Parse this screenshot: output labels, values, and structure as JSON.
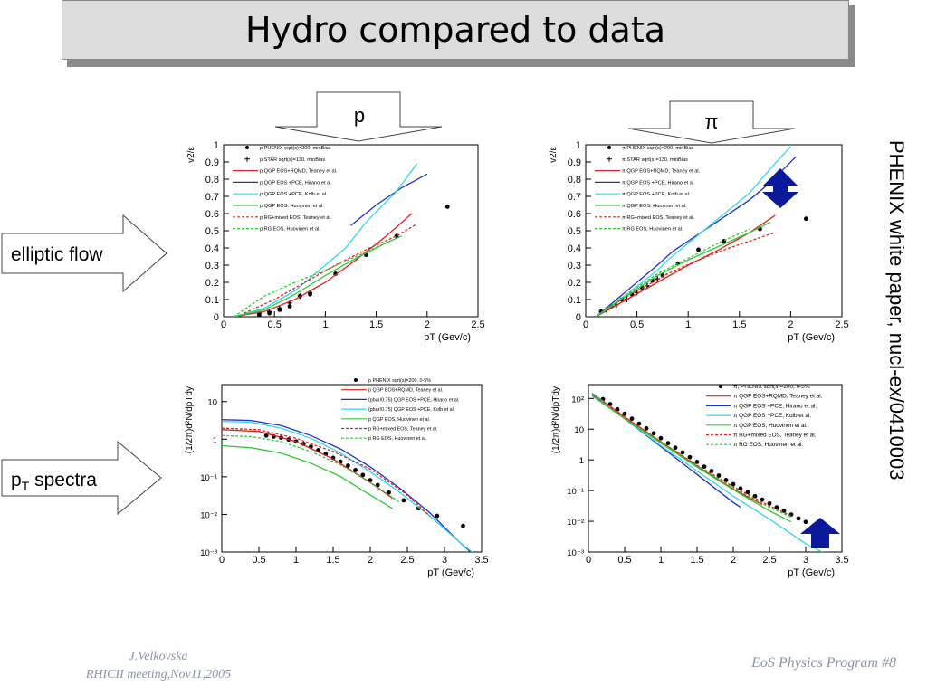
{
  "title": "Hydro compared to data",
  "side_note": "PHENIX white paper, nucl-ex/0410003",
  "footer": {
    "author": "J.Velkovska",
    "meeting": "RHICII meeting,Nov11,2005",
    "program": "EoS Physics Program  #8"
  },
  "arrows": {
    "proton_label": "p",
    "pion_label": "π",
    "elliptic_label": "elliptic flow",
    "spectra_label_main": "p",
    "spectra_label_sub": "T",
    "spectra_label_rest": " spectra"
  },
  "colors": {
    "data": "#000000",
    "qgp_rqmd": "#e02020",
    "qgp_hirano": "#2030c8",
    "qgp_kolb": "#30d8e8",
    "qgp_huovinen": "#30c830",
    "rg_teaney": "#e02020",
    "rg_huovinen": "#30c830",
    "highlight_arrow": "#0a1a9a"
  },
  "chart_data": [
    {
      "id": "v2_proton",
      "type": "line",
      "ylabel": "v2/ε",
      "xlabel": "pT (Gev/c)",
      "xlim": [
        0,
        2.5
      ],
      "ylim": [
        0,
        1
      ],
      "yscale": "linear",
      "xticks": [
        "0",
        "0.5",
        "1",
        "1.5",
        "2",
        "2.5"
      ],
      "yticks": [
        "0",
        "0.1",
        "0.2",
        "0.3",
        "0.4",
        "0.5",
        "0.6",
        "0.7",
        "0.8",
        "0.9",
        "1"
      ],
      "legend": [
        "p PHENIX sqrt(s)=200, minBias",
        "p STAR sqrt(s)=130, minBias",
        "p  QGP EOS+RQMD, Teaney et al.",
        "p QGP EOS +PCE, Hirano et al.",
        "p QGP EOS +PCE, Kolb et al.",
        "p QGP EOS, Huovinen et al.",
        "p RG+mixed EOS, Teaney et al.",
        "p RG EOS, Huovinen et al."
      ],
      "series": [
        {
          "name": "p PHENIX sqrt(s)=200, minBias",
          "style": "points",
          "color": "#000000",
          "x": [
            0.35,
            0.45,
            0.55,
            0.65,
            0.75,
            0.85,
            1.1,
            1.4,
            1.7,
            2.2
          ],
          "y": [
            0.01,
            0.02,
            0.04,
            0.06,
            0.12,
            0.13,
            0.25,
            0.36,
            0.47,
            0.64
          ]
        },
        {
          "name": "p STAR sqrt(s)=130, minBias",
          "style": "stars",
          "color": "#000000",
          "x": [
            0.35,
            0.45,
            0.55,
            0.65,
            0.75,
            0.85
          ],
          "y": [
            0.02,
            0.03,
            0.05,
            0.08,
            0.12,
            0.14
          ]
        },
        {
          "name": "p  QGP EOS+RQMD, Teaney et al.",
          "style": "solid",
          "color": "#e02020",
          "x": [
            0.1,
            0.4,
            0.7,
            1.0,
            1.3,
            1.6,
            1.85
          ],
          "y": [
            0.0,
            0.03,
            0.1,
            0.2,
            0.33,
            0.47,
            0.6
          ]
        },
        {
          "name": "p QGP EOS +PCE, Hirano et al.",
          "style": "solid",
          "color": "#2030c8",
          "x": [
            1.25,
            1.5,
            1.75,
            2.0
          ],
          "y": [
            0.53,
            0.65,
            0.75,
            0.83
          ]
        },
        {
          "name": "p QGP EOS +PCE, Kolb et al.",
          "style": "solid",
          "color": "#30d8e8",
          "x": [
            0.1,
            0.4,
            0.7,
            1.0,
            1.2,
            1.4,
            1.7,
            1.9
          ],
          "y": [
            0.0,
            0.05,
            0.15,
            0.3,
            0.4,
            0.55,
            0.73,
            0.89
          ]
        },
        {
          "name": "p QGP EOS, Huovinen et al.",
          "style": "solid",
          "color": "#30c830",
          "x": [
            0.1,
            0.4,
            0.7,
            1.0,
            1.3,
            1.6,
            1.75
          ],
          "y": [
            0.0,
            0.04,
            0.13,
            0.24,
            0.34,
            0.43,
            0.47
          ]
        },
        {
          "name": "p RG+mixed EOS, Teaney et al.",
          "style": "dotted",
          "color": "#e02020",
          "x": [
            0.2,
            0.5,
            0.8,
            1.1,
            1.4,
            1.7,
            1.9
          ],
          "y": [
            0.02,
            0.1,
            0.2,
            0.3,
            0.39,
            0.47,
            0.54
          ]
        },
        {
          "name": "p RG EOS, Huovinen et al.",
          "style": "dotted",
          "color": "#30c830",
          "x": [
            0.1,
            0.4,
            0.7,
            1.0,
            1.3,
            1.6
          ],
          "y": [
            0.0,
            0.12,
            0.2,
            0.27,
            0.35,
            0.43
          ]
        }
      ]
    },
    {
      "id": "v2_pion",
      "type": "line",
      "ylabel": "v2/ε",
      "xlabel": "pT (Gev/c)",
      "xlim": [
        0,
        2.5
      ],
      "ylim": [
        0,
        1
      ],
      "yscale": "linear",
      "xticks": [
        "0",
        "0.5",
        "1",
        "1.5",
        "2",
        "2.5"
      ],
      "yticks": [
        "0",
        "0.1",
        "0.2",
        "0.3",
        "0.4",
        "0.5",
        "0.6",
        "0.7",
        "0.8",
        "0.9",
        "1"
      ],
      "legend": [
        "π PHENIX sqrt(s)=200, minBias",
        "π STAR sqrt(s)=130, minBias",
        "π  QGP EOS+RQMD, Teaney et al.",
        "π QGP EOS +PCE, Hirano et al.",
        "π QGP EOS +PCE, Kolb et al.",
        "π QGP EOS, Huovinen et al.",
        "π RG+mixed EOS, Teaney et al.",
        "π RG EOS, Huovinen et al."
      ],
      "series": [
        {
          "name": "π PHENIX sqrt(s)=200, minBias",
          "style": "points",
          "color": "#000000",
          "x": [
            0.15,
            0.25,
            0.35,
            0.45,
            0.55,
            0.65,
            0.75,
            0.9,
            1.1,
            1.35,
            1.7,
            2.15
          ],
          "y": [
            0.03,
            0.06,
            0.1,
            0.13,
            0.17,
            0.21,
            0.24,
            0.31,
            0.39,
            0.44,
            0.51,
            0.57
          ]
        },
        {
          "name": "π STAR sqrt(s)=130, minBias",
          "style": "stars",
          "color": "#000000",
          "x": [
            0.2,
            0.3,
            0.4,
            0.5,
            0.6,
            0.7
          ],
          "y": [
            0.04,
            0.07,
            0.1,
            0.14,
            0.18,
            0.22
          ]
        },
        {
          "name": "π  QGP EOS+RQMD, Teaney et al.",
          "style": "solid",
          "color": "#e02020",
          "x": [
            0.1,
            0.4,
            0.7,
            1.0,
            1.3,
            1.6,
            1.85
          ],
          "y": [
            0.0,
            0.1,
            0.2,
            0.3,
            0.39,
            0.49,
            0.59
          ]
        },
        {
          "name": "π QGP EOS +PCE, Hirano et al.",
          "style": "solid",
          "color": "#2030c8",
          "x": [
            0.1,
            0.4,
            0.7,
            0.85,
            1.6,
            1.8,
            2.05
          ],
          "y": [
            0.0,
            0.15,
            0.3,
            0.38,
            0.68,
            0.78,
            0.93
          ]
        },
        {
          "name": "π QGP EOS +PCE, Kolb et al.",
          "style": "solid",
          "color": "#30d8e8",
          "x": [
            0.1,
            0.4,
            0.7,
            0.8,
            1.6,
            1.8,
            2.0
          ],
          "y": [
            0.0,
            0.13,
            0.27,
            0.33,
            0.72,
            0.86,
            0.99
          ]
        },
        {
          "name": "π QGP EOS, Huovinen et al.",
          "style": "solid",
          "color": "#30c830",
          "x": [
            0.1,
            0.4,
            0.7,
            1.0,
            1.3,
            1.6,
            1.8
          ],
          "y": [
            0.0,
            0.12,
            0.24,
            0.33,
            0.41,
            0.49,
            0.55
          ]
        },
        {
          "name": "π RG+mixed EOS, Teaney et al.",
          "style": "dotted",
          "color": "#e02020",
          "x": [
            0.2,
            0.5,
            0.8,
            1.1,
            1.4,
            1.7,
            1.85
          ],
          "y": [
            0.05,
            0.15,
            0.25,
            0.33,
            0.4,
            0.46,
            0.49
          ]
        },
        {
          "name": "π RG EOS, Huovinen et al.",
          "style": "dotted",
          "color": "#30c830",
          "x": [
            0.1,
            0.4,
            0.7,
            1.0,
            1.3,
            1.6
          ],
          "y": [
            0.0,
            0.13,
            0.25,
            0.34,
            0.43,
            0.51
          ]
        }
      ]
    },
    {
      "id": "spectra_proton",
      "type": "line",
      "ylabel": "(1/2π)d²N/dpTdy",
      "xlabel": "pT (Gev/c)",
      "xlim": [
        0,
        3.5
      ],
      "ylim": [
        0.001,
        100
      ],
      "yscale": "log",
      "xticks": [
        "0",
        "0.5",
        "1",
        "1.5",
        "2",
        "2.5",
        "3",
        "3.5"
      ],
      "yticks": [
        "10⁻³",
        "10⁻²",
        "10⁻¹",
        "1",
        "10"
      ],
      "legend": [
        "p PHENIX sqrt(s)=200, 0-5%",
        "p  QGP EOS+RQMD, Teaney et al.",
        "(pbar/0.75) QGP EOS +PCE, Hirano et al.",
        "(pbar/0.75) QGP EOS +PCE, Kolb et al.",
        "p QGP EOS, Huovinen et al.",
        "p RG+mixed EOS, Teaney et al.",
        "p RG EOS, Huovinen et al."
      ],
      "series": [
        {
          "name": "p PHENIX sqrt(s)=200, 0-5%",
          "style": "points",
          "color": "#000000",
          "x": [
            0.6,
            0.7,
            0.8,
            0.9,
            1.0,
            1.1,
            1.2,
            1.3,
            1.4,
            1.5,
            1.6,
            1.7,
            1.8,
            1.9,
            2.0,
            2.1,
            2.25,
            2.45,
            2.65,
            2.9,
            3.25
          ],
          "y": [
            3,
            2.8,
            2.6,
            2.3,
            2.0,
            1.7,
            1.4,
            1.1,
            0.85,
            0.65,
            0.5,
            0.38,
            0.28,
            0.2,
            0.14,
            0.1,
            0.06,
            0.035,
            0.02,
            0.012,
            0.006
          ]
        },
        {
          "name": "p  QGP EOS+RQMD, Teaney et al.",
          "style": "solid",
          "color": "#e02020",
          "x": [
            0,
            0.5,
            1.0,
            1.5,
            2.0,
            2.3
          ],
          "y": [
            4.5,
            4.0,
            2.0,
            0.6,
            0.12,
            0.04
          ]
        },
        {
          "name": "(pbar/0.75) QGP EOS +PCE, Hirano et al.",
          "style": "solid",
          "color": "#2030c8",
          "x": [
            0,
            0.4,
            0.8,
            1.2,
            1.6,
            2.0,
            2.4,
            2.8,
            3.2,
            3.4
          ],
          "y": [
            9,
            8.5,
            6,
            3,
            1.2,
            0.35,
            0.08,
            0.015,
            0.002,
            0.0008
          ]
        },
        {
          "name": "(pbar/0.75) QGP EOS +PCE, Kolb et al.",
          "style": "solid",
          "color": "#30d8e8",
          "x": [
            0,
            0.4,
            0.8,
            1.2,
            1.6,
            2.0,
            2.4,
            2.8,
            3.2,
            3.5
          ],
          "y": [
            8,
            7.5,
            5,
            2.5,
            0.9,
            0.25,
            0.06,
            0.012,
            0.002,
            0.0006
          ]
        },
        {
          "name": "p QGP EOS, Huovinen et al.",
          "style": "solid",
          "color": "#30c830",
          "x": [
            0,
            0.4,
            0.8,
            1.2,
            1.6,
            2.0,
            2.3
          ],
          "y": [
            1.5,
            1.3,
            0.9,
            0.45,
            0.18,
            0.05,
            0.02
          ]
        },
        {
          "name": "p RG+mixed EOS, Teaney et al.",
          "style": "dotted",
          "color": "#e02020",
          "x": [
            0,
            0.5,
            1.0,
            1.5,
            2.0,
            2.5,
            2.8
          ],
          "y": [
            5,
            4.5,
            2.5,
            1.0,
            0.3,
            0.05,
            0.012
          ]
        },
        {
          "name": "p RG EOS, Huovinen et al.",
          "style": "dotted",
          "color": "#30c830",
          "x": [
            0,
            0.4,
            0.8,
            1.2,
            1.6,
            2.0,
            2.4
          ],
          "y": [
            3,
            2.8,
            2.0,
            1.0,
            0.4,
            0.12,
            0.03
          ]
        }
      ]
    },
    {
      "id": "spectra_pion",
      "type": "line",
      "ylabel": "(1/2π)d²N/dpTdy",
      "xlabel": "pT (Gev/c)",
      "xlim": [
        0,
        3.5
      ],
      "ylim": [
        0.001,
        1000
      ],
      "yscale": "log",
      "xticks": [
        "0",
        "0.5",
        "1",
        "1.5",
        "2",
        "2.5",
        "3",
        "3.5"
      ],
      "yticks": [
        "10⁻³",
        "10⁻²",
        "10⁻¹",
        "1",
        "10",
        "10²"
      ],
      "legend": [
        "π, PHENIX sqrt(s)=200, 0-5%",
        "π  QGP EOS+RQMD, Teaney et al.",
        "π QGP EOS +PCE, Hirano et al.",
        "π QGP EOS +PCE, Kolb et al.",
        "π QGP EOS, Huovinen et al.",
        "π RG+mixed EOS, Teaney et al.",
        "π RG EOS, Huovinen et al."
      ],
      "series": [
        {
          "name": "π, PHENIX sqrt(s)=200, 0-5%",
          "style": "points",
          "color": "#000000",
          "x": [
            0.2,
            0.3,
            0.4,
            0.5,
            0.6,
            0.7,
            0.8,
            0.9,
            1.0,
            1.1,
            1.2,
            1.3,
            1.4,
            1.5,
            1.6,
            1.7,
            1.8,
            1.9,
            2.0,
            2.1,
            2.2,
            2.3,
            2.4,
            2.5,
            2.6,
            2.7,
            2.8,
            2.9,
            3.0
          ],
          "y": [
            300,
            200,
            130,
            90,
            60,
            40,
            27,
            18,
            12,
            8,
            5.5,
            3.7,
            2.5,
            1.7,
            1.15,
            0.8,
            0.55,
            0.38,
            0.27,
            0.19,
            0.14,
            0.1,
            0.075,
            0.055,
            0.04,
            0.03,
            0.022,
            0.016,
            0.012
          ]
        },
        {
          "name": "π  QGP EOS+RQMD, Teaney et al.",
          "style": "solid",
          "color": "#e02020",
          "x": [
            0.05,
            0.5,
            1.0,
            1.5,
            2.0,
            2.4
          ],
          "y": [
            500,
            70,
            9,
            1.2,
            0.18,
            0.05
          ]
        },
        {
          "name": "π QGP EOS +PCE, Hirano et al.",
          "style": "solid",
          "color": "#2030c8",
          "x": [
            0.05,
            0.5,
            1.0,
            1.5,
            2.0,
            2.1
          ],
          "y": [
            450,
            60,
            6,
            0.6,
            0.06,
            0.04
          ]
        },
        {
          "name": "π QGP EOS +PCE, Kolb et al.",
          "style": "solid",
          "color": "#30d8e8",
          "x": [
            0.05,
            0.5,
            1.0,
            1.5,
            2.0,
            2.5,
            3.0,
            3.3
          ],
          "y": [
            500,
            60,
            6.5,
            0.8,
            0.1,
            0.015,
            0.002,
            0.0008
          ]
        },
        {
          "name": "π QGP EOS, Huovinen et al.",
          "style": "solid",
          "color": "#30c830",
          "x": [
            0.05,
            0.5,
            1.0,
            1.5,
            2.0,
            2.5,
            2.8
          ],
          "y": [
            400,
            60,
            8,
            1.1,
            0.17,
            0.03,
            0.012
          ]
        },
        {
          "name": "π RG+mixed EOS, Teaney et al.",
          "style": "dotted",
          "color": "#e02020",
          "x": [
            0.05,
            0.5,
            1.0,
            1.5,
            2.0,
            2.5,
            2.8
          ],
          "y": [
            450,
            65,
            9,
            1.3,
            0.22,
            0.045,
            0.02
          ]
        },
        {
          "name": "π RG EOS, Huovinen et al.",
          "style": "dotted",
          "color": "#30c830",
          "x": [
            0.05,
            0.5,
            1.0,
            1.5,
            2.0,
            2.5,
            2.8
          ],
          "y": [
            420,
            60,
            8.5,
            1.2,
            0.2,
            0.04,
            0.018
          ]
        }
      ]
    }
  ]
}
